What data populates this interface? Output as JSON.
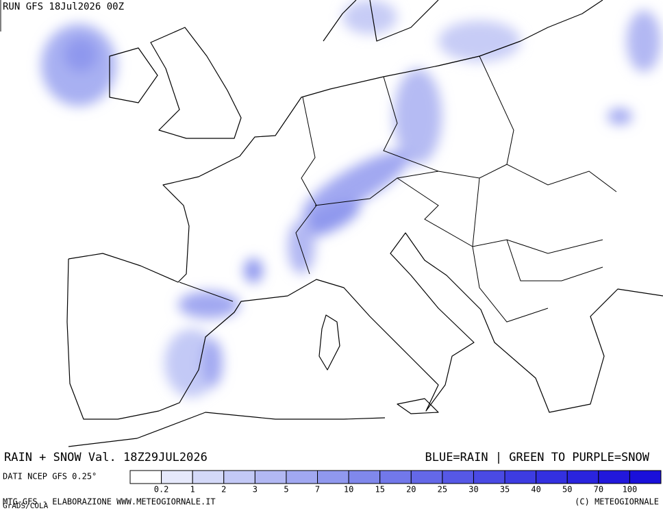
{
  "header": {
    "run": "RUN GFS 18Jul2026 00Z"
  },
  "footer": {
    "title_left": "RAIN + SNOW Val. 18Z29JUL2026",
    "title_right": "BLUE=RAIN | GREEN TO PURPLE=SNOW",
    "data_source": "DATI NCEP GFS 0.25°",
    "processing": "MTG-GFS - ELABORAZIONE WWW.METEOGIORNALE.IT",
    "grads": "GrADS/COLA",
    "copyright": "(C) METEOGIORNALE"
  },
  "legend": {
    "labels": [
      "0.2",
      "1",
      "2",
      "3",
      "5",
      "7",
      "10",
      "15",
      "20",
      "25",
      "30",
      "35",
      "40",
      "50",
      "70",
      "100"
    ],
    "colors": [
      "#ffffff",
      "#e6e9fb",
      "#d4d9f8",
      "#c3c9f6",
      "#b2b8f3",
      "#a1a8f1",
      "#9098ee",
      "#8088ec",
      "#7278ea",
      "#6468e8",
      "#5658e6",
      "#4a4ae4",
      "#3d3ce2",
      "#3330e0",
      "#2a24de",
      "#2218dc",
      "#1a10da"
    ]
  }
}
